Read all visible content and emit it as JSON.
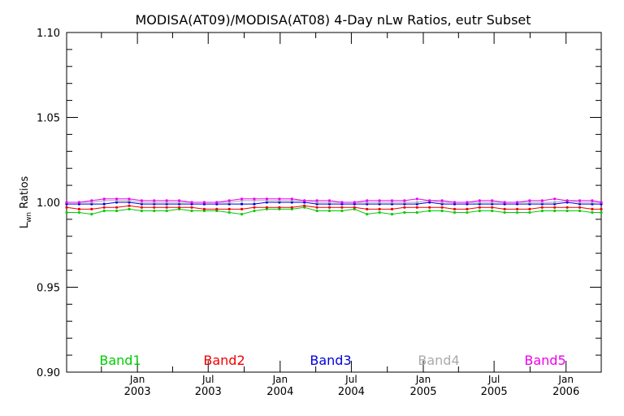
{
  "chart_data": {
    "type": "line",
    "title": "MODISA(AT09)/MODISA(AT08) 4-Day nLw Ratios, eutr Subset",
    "ylabel_main": "L",
    "ylabel_sub": "wn",
    "ylabel_rest": " Ratios",
    "ylim": [
      0.9,
      1.1
    ],
    "yticks": [
      "0.90",
      "0.95",
      "1.00",
      "1.05",
      "1.10"
    ],
    "xlim": [
      "2002-07-04",
      "2006-04-01"
    ],
    "xticks": [
      {
        "date": "2003-01-01",
        "month": "Jan",
        "year": "2003"
      },
      {
        "date": "2003-07-01",
        "month": "Jul",
        "year": "2003"
      },
      {
        "date": "2004-01-01",
        "month": "Jan",
        "year": "2004"
      },
      {
        "date": "2004-07-01",
        "month": "Jul",
        "year": "2004"
      },
      {
        "date": "2005-01-01",
        "month": "Jan",
        "year": "2005"
      },
      {
        "date": "2005-07-01",
        "month": "Jul",
        "year": "2005"
      },
      {
        "date": "2006-01-01",
        "month": "Jan",
        "year": "2006"
      }
    ],
    "x": [
      "2002-07-04",
      "2002-08-05",
      "2002-09-06",
      "2002-10-08",
      "2002-11-09",
      "2002-12-11",
      "2003-01-12",
      "2003-02-13",
      "2003-03-17",
      "2003-04-18",
      "2003-05-20",
      "2003-06-21",
      "2003-07-23",
      "2003-08-24",
      "2003-09-25",
      "2003-10-27",
      "2003-11-28",
      "2003-12-30",
      "2004-01-31",
      "2004-03-03",
      "2004-04-04",
      "2004-05-06",
      "2004-06-07",
      "2004-07-09",
      "2004-08-10",
      "2004-09-11",
      "2004-10-13",
      "2004-11-14",
      "2004-12-16",
      "2005-01-17",
      "2005-02-18",
      "2005-03-22",
      "2005-04-23",
      "2005-05-25",
      "2005-06-26",
      "2005-07-28",
      "2005-08-29",
      "2005-09-30",
      "2005-11-01",
      "2005-12-03",
      "2006-01-04",
      "2006-02-05",
      "2006-03-09",
      "2006-04-01"
    ],
    "series": [
      {
        "name": "Band1",
        "color": "#00cc00",
        "values": [
          0.994,
          0.994,
          0.993,
          0.995,
          0.995,
          0.996,
          0.995,
          0.995,
          0.995,
          0.996,
          0.995,
          0.995,
          0.995,
          0.994,
          0.993,
          0.995,
          0.996,
          0.996,
          0.996,
          0.997,
          0.995,
          0.995,
          0.995,
          0.996,
          0.993,
          0.994,
          0.993,
          0.994,
          0.994,
          0.995,
          0.995,
          0.994,
          0.994,
          0.995,
          0.995,
          0.994,
          0.994,
          0.994,
          0.995,
          0.995,
          0.995,
          0.995,
          0.994,
          0.994
        ]
      },
      {
        "name": "Band2",
        "color": "#ee0000",
        "values": [
          0.997,
          0.996,
          0.996,
          0.997,
          0.997,
          0.998,
          0.997,
          0.997,
          0.997,
          0.997,
          0.997,
          0.996,
          0.996,
          0.996,
          0.996,
          0.997,
          0.997,
          0.997,
          0.997,
          0.998,
          0.997,
          0.997,
          0.997,
          0.997,
          0.996,
          0.996,
          0.996,
          0.997,
          0.997,
          0.997,
          0.997,
          0.996,
          0.996,
          0.997,
          0.997,
          0.996,
          0.996,
          0.996,
          0.997,
          0.997,
          0.997,
          0.997,
          0.996,
          0.996
        ]
      },
      {
        "name": "Band3",
        "color": "#0000dd",
        "values": [
          0.999,
          0.999,
          0.999,
          0.999,
          1.0,
          1.0,
          0.999,
          0.999,
          0.999,
          0.999,
          0.999,
          0.999,
          0.999,
          0.999,
          0.999,
          0.999,
          1.0,
          1.0,
          1.0,
          1.0,
          0.999,
          0.999,
          0.999,
          0.999,
          0.999,
          0.999,
          0.999,
          0.999,
          0.999,
          1.0,
          0.999,
          0.999,
          0.999,
          0.999,
          0.999,
          0.999,
          0.999,
          0.999,
          0.999,
          0.999,
          1.0,
          0.999,
          0.999,
          0.999
        ]
      },
      {
        "name": "Band4",
        "color": "#aaaaaa",
        "values": [
          1.0,
          1.0,
          1.0,
          1.001,
          1.001,
          1.001,
          1.0,
          1.0,
          1.0,
          1.0,
          1.0,
          1.0,
          1.0,
          1.0,
          1.001,
          1.001,
          1.001,
          1.001,
          1.001,
          1.001,
          1.0,
          1.0,
          1.0,
          1.0,
          1.0,
          1.0,
          1.0,
          1.0,
          1.0,
          1.001,
          1.0,
          1.0,
          1.0,
          1.0,
          1.0,
          1.0,
          1.0,
          1.0,
          1.0,
          1.0,
          1.001,
          1.0,
          1.0,
          1.0
        ]
      },
      {
        "name": "Band5",
        "color": "#ee00ee",
        "values": [
          1.0,
          1.0,
          1.001,
          1.002,
          1.002,
          1.002,
          1.001,
          1.001,
          1.001,
          1.001,
          1.0,
          1.0,
          1.0,
          1.001,
          1.002,
          1.002,
          1.002,
          1.002,
          1.002,
          1.001,
          1.001,
          1.001,
          1.0,
          1.0,
          1.001,
          1.001,
          1.001,
          1.001,
          1.002,
          1.001,
          1.001,
          1.0,
          1.0,
          1.001,
          1.001,
          1.0,
          1.0,
          1.001,
          1.001,
          1.002,
          1.001,
          1.001,
          1.001,
          1.0
        ]
      }
    ],
    "colors": {
      "axis": "#000000",
      "background": "#ffffff"
    }
  }
}
